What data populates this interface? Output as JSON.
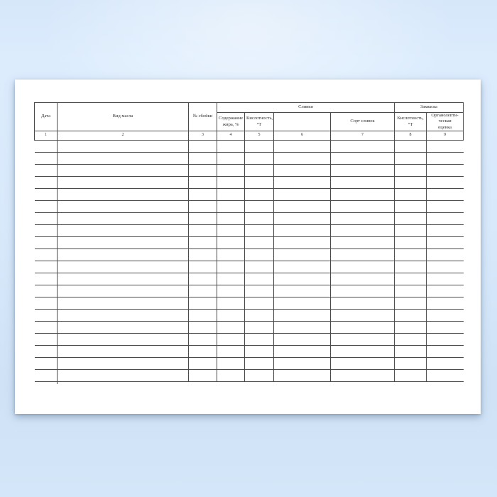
{
  "document": {
    "kind": "blank-register-form-page",
    "table": {
      "groups": [
        {
          "label": "Сливки"
        },
        {
          "label": "Закваска"
        }
      ],
      "columns": [
        {
          "num": "1",
          "label": "Дата"
        },
        {
          "num": "2",
          "label": "Вид масла"
        },
        {
          "num": "3",
          "label": "№ сбойки"
        },
        {
          "num": "4",
          "label": "Содержание\nжира, %"
        },
        {
          "num": "5",
          "label": "Кислотность,\n°Т"
        },
        {
          "num": "6",
          "label": ""
        },
        {
          "num": "7",
          "label": "Сорт сливок"
        },
        {
          "num": "8",
          "label": "Кислотность,\n°Т"
        },
        {
          "num": "9",
          "label": "Органолепти-\nческая\nоценка"
        }
      ],
      "body_rows": 20
    },
    "colors": {
      "page": "#ffffff",
      "rule_line": "#4a4a4a",
      "text": "#2f2f2f",
      "background_top": "#dcecfd",
      "background_bottom": "#cfe2f6"
    }
  }
}
